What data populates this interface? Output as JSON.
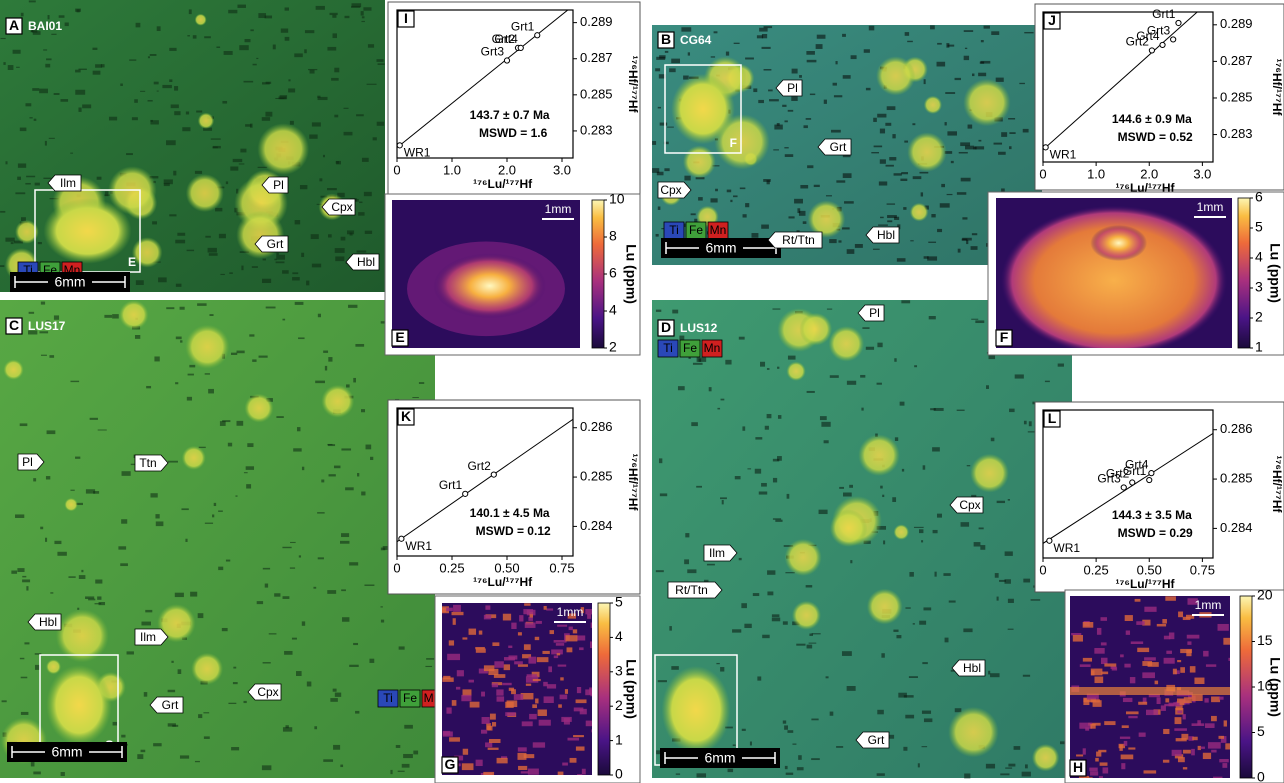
{
  "panels": [
    {
      "letter": "A",
      "sample": "BAI01",
      "elements": [
        "Ti",
        "Fe",
        "Mn"
      ],
      "scale": "6mm",
      "inset": "E",
      "minerals": [
        "Ilm",
        "Pl",
        "Cpx",
        "Grt",
        "Hbl"
      ],
      "isochron": {
        "letter": "I",
        "x_label": "¹⁷⁶Lu/¹⁷⁷Hf",
        "y_label": "¹⁷⁶Hf/¹⁷⁷Hf",
        "age": "143.7 ± 0.7 Ma",
        "mswd": "MSWD = 1.6",
        "xlim": [
          0,
          3.2
        ],
        "ylim": [
          0.2815,
          0.2897
        ],
        "xticks": [
          0,
          {
            "value": 1,
            "label": "1.0"
          },
          {
            "value": 2,
            "label": "2.0"
          },
          {
            "value": 3,
            "label": "3.0"
          }
        ],
        "yticks": [
          0.289,
          0.287,
          0.285,
          0.283
        ],
        "points": [
          {
            "label": "WR1",
            "x": 0.05,
            "y": 0.2822
          },
          {
            "label": "Grt3",
            "x": 2.0,
            "y": 0.2869
          },
          {
            "label": "Grt2",
            "x": 2.2,
            "y": 0.2876
          },
          {
            "label": "Grt4",
            "x": 2.25,
            "y": 0.2876
          },
          {
            "label": "Grt1",
            "x": 2.55,
            "y": 0.2883
          }
        ]
      },
      "lu_map": {
        "letter": "E",
        "scale": "1mm",
        "label": "Lu (ppm)",
        "clim": [
          2,
          10
        ],
        "ticks": [
          2,
          4,
          6,
          8,
          10
        ]
      }
    },
    {
      "letter": "B",
      "sample": "CG64",
      "elements": [
        "Ti",
        "Fe",
        "Mn"
      ],
      "scale": "6mm",
      "inset": "F",
      "minerals": [
        "Pl",
        "Grt",
        "Cpx",
        "Rt/Ttn",
        "Hbl"
      ],
      "isochron": {
        "letter": "J",
        "x_label": "¹⁷⁶Lu/¹⁷⁷Hf",
        "y_label": "¹⁷⁶Hf/¹⁷⁷Hf",
        "age": "144.6 ± 0.9 Ma",
        "mswd": "MSWD = 0.52",
        "xlim": [
          0,
          3.2
        ],
        "ylim": [
          0.2815,
          0.2897
        ],
        "xticks": [
          0,
          {
            "value": 1,
            "label": "1.0"
          },
          {
            "value": 2,
            "label": "2.0"
          },
          {
            "value": 3,
            "label": "3.0"
          }
        ],
        "yticks": [
          0.289,
          0.287,
          0.285,
          0.283
        ],
        "points": [
          {
            "label": "WR1",
            "x": 0.05,
            "y": 0.2823
          },
          {
            "label": "Grt2",
            "x": 2.05,
            "y": 0.2876
          },
          {
            "label": "Grt4",
            "x": 2.25,
            "y": 0.2879
          },
          {
            "label": "Grt3",
            "x": 2.45,
            "y": 0.2882
          },
          {
            "label": "Grt1",
            "x": 2.55,
            "y": 0.2891
          }
        ]
      },
      "lu_map": {
        "letter": "F",
        "scale": "1mm",
        "label": "Lu (ppm)",
        "clim": [
          1,
          6
        ],
        "ticks": [
          1,
          2,
          3,
          4,
          5,
          6
        ]
      }
    },
    {
      "letter": "C",
      "sample": "LUS17",
      "elements": [
        "Ti",
        "Fe",
        "Mn"
      ],
      "scale": "6mm",
      "inset": "G",
      "minerals": [
        "Ttn",
        "Pl",
        "Hbl",
        "Ilm",
        "Cpx",
        "Grt"
      ],
      "isochron": {
        "letter": "K",
        "x_label": "¹⁷⁶Lu/¹⁷⁷Hf",
        "y_label": "¹⁷⁶Hf/¹⁷⁷Hf",
        "age": "140.1 ± 4.5 Ma",
        "mswd": "MSWD = 0.12",
        "xlim": [
          0,
          0.8
        ],
        "ylim": [
          0.2834,
          0.2864
        ],
        "xticks": [
          0,
          0.25,
          {
            "value": 0.5,
            "label": "0.50"
          },
          0.75
        ],
        "yticks": [
          0.286,
          0.285,
          0.284
        ],
        "points": [
          {
            "label": "WR1",
            "x": 0.02,
            "y": 0.28375
          },
          {
            "label": "Grt1",
            "x": 0.31,
            "y": 0.28466
          },
          {
            "label": "Grt2",
            "x": 0.44,
            "y": 0.28505
          }
        ]
      },
      "lu_map": {
        "letter": "G",
        "scale": "1mm",
        "label": "Lu (ppm)",
        "clim": [
          0,
          5
        ],
        "ticks": [
          0,
          1,
          2,
          3,
          4,
          5
        ]
      }
    },
    {
      "letter": "D",
      "sample": "LUS12",
      "elements": [
        "Ti",
        "Fe",
        "Mn"
      ],
      "scale": "6mm",
      "inset": "H",
      "minerals": [
        "Pl",
        "Cpx",
        "Ilm",
        "Rt/Ttn",
        "Hbl",
        "Grt"
      ],
      "isochron": {
        "letter": "L",
        "x_label": "¹⁷⁶Lu/¹⁷⁷Hf",
        "y_label": "¹⁷⁶Hf/¹⁷⁷Hf",
        "age": "144.3 ± 3.5 Ma",
        "mswd": "MSWD = 0.29",
        "xlim": [
          0,
          0.8
        ],
        "ylim": [
          0.2834,
          0.2864
        ],
        "xticks": [
          0,
          0.25,
          {
            "value": 0.5,
            "label": "0.50"
          },
          0.75
        ],
        "yticks": [
          0.286,
          0.285,
          0.284
        ],
        "points": [
          {
            "label": "WR1",
            "x": 0.03,
            "y": 0.28375
          },
          {
            "label": "Grt3",
            "x": 0.38,
            "y": 0.28483
          },
          {
            "label": "Grt2",
            "x": 0.42,
            "y": 0.28493
          },
          {
            "label": "Grt1",
            "x": 0.5,
            "y": 0.28498
          },
          {
            "label": "Grt4",
            "x": 0.51,
            "y": 0.28512
          }
        ]
      },
      "lu_map": {
        "letter": "H",
        "scale": "1mm",
        "label": "Lu (ppm)",
        "clim": [
          0,
          20
        ],
        "ticks": [
          0,
          5,
          10,
          15,
          20
        ]
      }
    }
  ]
}
